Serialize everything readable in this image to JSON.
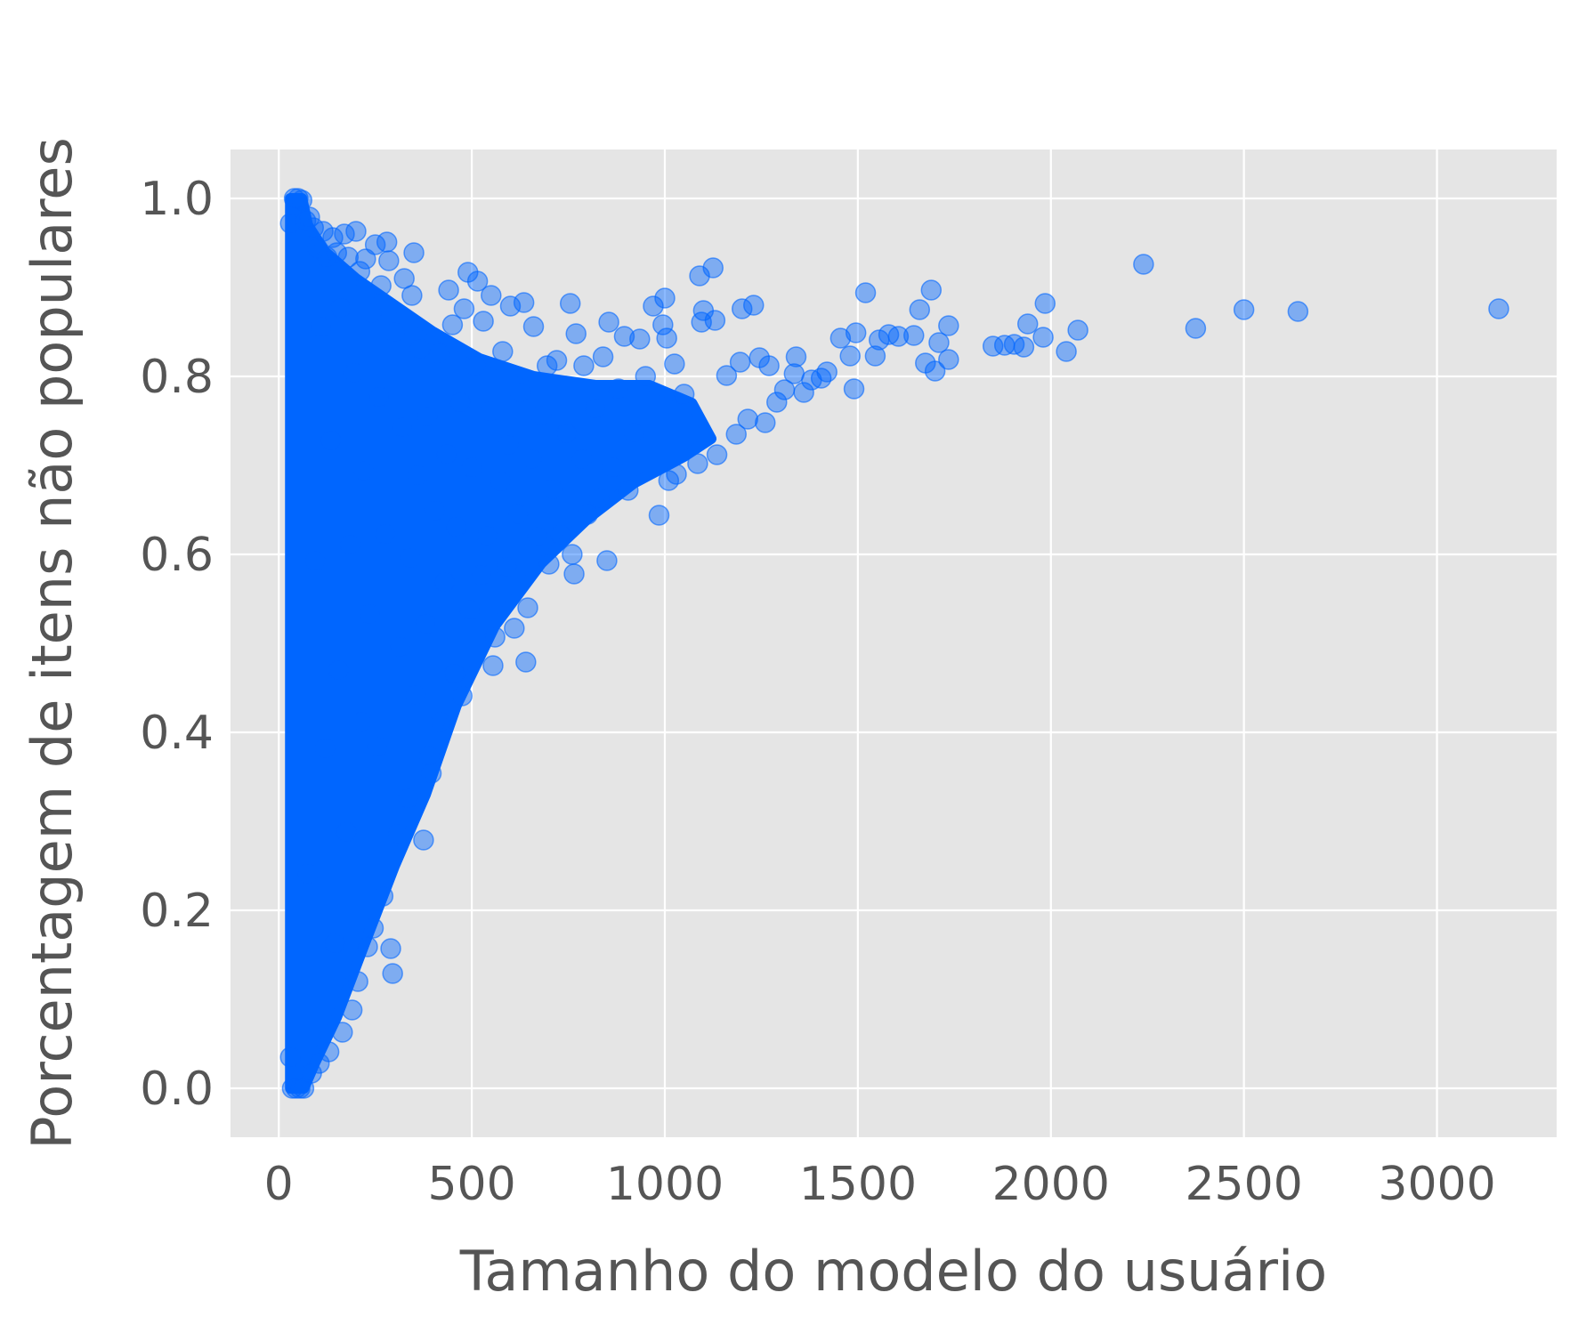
{
  "chart_data": {
    "type": "scatter",
    "title": "",
    "xlabel": "Tamanho do modelo do usuário",
    "ylabel": "Porcentagem de itens não populares",
    "xlim": [
      -125,
      3310
    ],
    "ylim": [
      -0.055,
      1.055
    ],
    "xticks": [
      0,
      500,
      1000,
      1500,
      2000,
      2500,
      3000
    ],
    "yticks": [
      0.0,
      0.2,
      0.4,
      0.6,
      0.8,
      1.0
    ],
    "xtick_labels": [
      "0",
      "500",
      "1000",
      "1500",
      "2000",
      "2500",
      "3000"
    ],
    "ytick_labels": [
      "0.0",
      "0.2",
      "0.4",
      "0.6",
      "0.8",
      "1.0"
    ],
    "grid": true,
    "style": "ggplot",
    "colors": {
      "background": "#e5e5e5",
      "grid": "#ffffff",
      "marker": "#0066ff",
      "text": "#555555"
    },
    "marker_alpha": 0.45,
    "series": [
      {
        "points": [
          [
            3160,
            0.876
          ],
          [
            2640,
            0.873
          ],
          [
            2500,
            0.875
          ],
          [
            2375,
            0.854
          ],
          [
            2240,
            0.926
          ],
          [
            2070,
            0.852
          ],
          [
            2040,
            0.828
          ],
          [
            1985,
            0.882
          ],
          [
            1980,
            0.844
          ],
          [
            1940,
            0.859
          ],
          [
            1930,
            0.833
          ],
          [
            1905,
            0.836
          ],
          [
            1880,
            0.835
          ],
          [
            1850,
            0.834
          ],
          [
            1735,
            0.857
          ],
          [
            1735,
            0.819
          ],
          [
            1710,
            0.838
          ],
          [
            1700,
            0.806
          ],
          [
            1690,
            0.897
          ],
          [
            1675,
            0.815
          ],
          [
            1660,
            0.875
          ],
          [
            1645,
            0.846
          ],
          [
            1605,
            0.845
          ],
          [
            1580,
            0.847
          ],
          [
            1555,
            0.841
          ],
          [
            1545,
            0.823
          ],
          [
            1520,
            0.894
          ],
          [
            1495,
            0.849
          ],
          [
            1490,
            0.786
          ],
          [
            1480,
            0.823
          ],
          [
            1455,
            0.843
          ],
          [
            1420,
            0.805
          ],
          [
            1405,
            0.798
          ],
          [
            1380,
            0.796
          ],
          [
            1360,
            0.782
          ],
          [
            1340,
            0.822
          ],
          [
            1335,
            0.803
          ],
          [
            1310,
            0.785
          ],
          [
            1290,
            0.771
          ],
          [
            1270,
            0.812
          ],
          [
            1260,
            0.748
          ],
          [
            1245,
            0.821
          ],
          [
            1230,
            0.88
          ],
          [
            1215,
            0.752
          ],
          [
            1200,
            0.876
          ],
          [
            1195,
            0.816
          ],
          [
            1185,
            0.735
          ],
          [
            1160,
            0.801
          ],
          [
            1135,
            0.712
          ],
          [
            1130,
            0.863
          ],
          [
            1125,
            0.922
          ],
          [
            1100,
            0.874
          ],
          [
            1095,
            0.861
          ],
          [
            1090,
            0.913
          ],
          [
            1085,
            0.702
          ],
          [
            1050,
            0.78
          ],
          [
            1030,
            0.69
          ],
          [
            1025,
            0.814
          ],
          [
            1010,
            0.683
          ],
          [
            1005,
            0.843
          ],
          [
            1000,
            0.888
          ],
          [
            995,
            0.858
          ],
          [
            985,
            0.644
          ],
          [
            970,
            0.879
          ],
          [
            950,
            0.8
          ],
          [
            935,
            0.842
          ],
          [
            920,
            0.737
          ],
          [
            905,
            0.672
          ],
          [
            895,
            0.845
          ],
          [
            880,
            0.786
          ],
          [
            865,
            0.698
          ],
          [
            855,
            0.861
          ],
          [
            850,
            0.593
          ],
          [
            840,
            0.822
          ],
          [
            830,
            0.663
          ],
          [
            820,
            0.764
          ],
          [
            800,
            0.645
          ],
          [
            790,
            0.812
          ],
          [
            785,
            0.707
          ],
          [
            770,
            0.848
          ],
          [
            765,
            0.578
          ],
          [
            760,
            0.6
          ],
          [
            755,
            0.882
          ],
          [
            745,
            0.736
          ],
          [
            730,
            0.622
          ],
          [
            720,
            0.818
          ],
          [
            710,
            0.673
          ],
          [
            700,
            0.589
          ],
          [
            695,
            0.812
          ],
          [
            680,
            0.756
          ],
          [
            670,
            0.62
          ],
          [
            660,
            0.856
          ],
          [
            655,
            0.707
          ],
          [
            645,
            0.54
          ],
          [
            640,
            0.479
          ],
          [
            635,
            0.883
          ],
          [
            625,
            0.782
          ],
          [
            620,
            0.645
          ],
          [
            610,
            0.517
          ],
          [
            600,
            0.879
          ],
          [
            595,
            0.723
          ],
          [
            590,
            0.586
          ],
          [
            580,
            0.828
          ],
          [
            575,
            0.682
          ],
          [
            560,
            0.507
          ],
          [
            555,
            0.475
          ],
          [
            550,
            0.891
          ],
          [
            545,
            0.761
          ],
          [
            540,
            0.621
          ],
          [
            530,
            0.862
          ],
          [
            525,
            0.577
          ],
          [
            515,
            0.907
          ],
          [
            510,
            0.812
          ],
          [
            500,
            0.698
          ],
          [
            495,
            0.538
          ],
          [
            490,
            0.917
          ],
          [
            480,
            0.876
          ],
          [
            475,
            0.441
          ],
          [
            470,
            0.771
          ],
          [
            460,
            0.631
          ],
          [
            455,
            0.466
          ],
          [
            450,
            0.858
          ],
          [
            440,
            0.897
          ],
          [
            435,
            0.713
          ],
          [
            430,
            0.569
          ],
          [
            420,
            0.412
          ],
          [
            415,
            0.826
          ],
          [
            405,
            0.649
          ],
          [
            395,
            0.354
          ],
          [
            390,
            0.374
          ],
          [
            385,
            0.755
          ],
          [
            380,
            0.522
          ],
          [
            375,
            0.279
          ],
          [
            365,
            0.831
          ],
          [
            360,
            0.689
          ],
          [
            355,
            0.442
          ],
          [
            350,
            0.939
          ],
          [
            345,
            0.891
          ],
          [
            340,
            0.596
          ],
          [
            335,
            0.326
          ],
          [
            325,
            0.91
          ],
          [
            320,
            0.743
          ],
          [
            315,
            0.496
          ],
          [
            310,
            0.286
          ],
          [
            300,
            0.85
          ],
          [
            295,
            0.129
          ],
          [
            290,
            0.157
          ],
          [
            285,
            0.93
          ],
          [
            280,
            0.951
          ],
          [
            275,
            0.623
          ],
          [
            270,
            0.216
          ],
          [
            265,
            0.902
          ],
          [
            260,
            0.777
          ],
          [
            255,
            0.384
          ],
          [
            250,
            0.948
          ],
          [
            245,
            0.18
          ],
          [
            240,
            0.871
          ],
          [
            235,
            0.533
          ],
          [
            230,
            0.159
          ],
          [
            225,
            0.932
          ],
          [
            220,
            0.694
          ],
          [
            215,
            0.412
          ],
          [
            210,
            0.918
          ],
          [
            205,
            0.12
          ],
          [
            200,
            0.963
          ],
          [
            195,
            0.804
          ],
          [
            190,
            0.088
          ],
          [
            185,
            0.611
          ],
          [
            180,
            0.934
          ],
          [
            175,
            0.288
          ],
          [
            170,
            0.96
          ],
          [
            165,
            0.063
          ],
          [
            160,
            0.877
          ],
          [
            155,
            0.47
          ],
          [
            150,
            0.939
          ],
          [
            145,
            0.163
          ],
          [
            140,
            0.956
          ],
          [
            135,
            0.728
          ],
          [
            130,
            0.041
          ],
          [
            125,
            0.934
          ],
          [
            120,
            0.382
          ],
          [
            115,
            0.963
          ],
          [
            110,
            0.856
          ],
          [
            105,
            0.028
          ],
          [
            100,
            0.944
          ],
          [
            95,
            0.593
          ],
          [
            90,
            0.967
          ],
          [
            85,
            0.017
          ],
          [
            80,
            0.979
          ],
          [
            75,
            0.241
          ],
          [
            70,
            0.975
          ],
          [
            65,
            0.0
          ],
          [
            60,
            0.998
          ],
          [
            55,
            0.0
          ],
          [
            50,
            1.0
          ],
          [
            45,
            0.0
          ],
          [
            40,
            1.0
          ],
          [
            35,
            0.0
          ],
          [
            30,
            0.972
          ],
          [
            30,
            0.035
          ]
        ]
      }
    ]
  }
}
